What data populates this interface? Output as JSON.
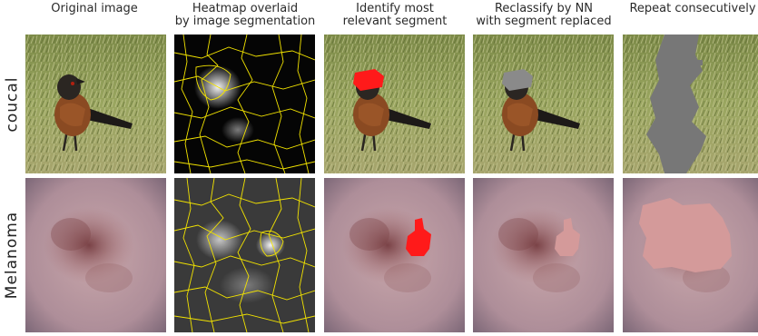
{
  "columns": [
    {
      "id": "original",
      "title_lines": [
        "Original image",
        ""
      ]
    },
    {
      "id": "heatmap",
      "title_lines": [
        "Heatmap overlaid",
        "by image segmentation"
      ]
    },
    {
      "id": "identify",
      "title_lines": [
        "Identify most",
        "relevant segment"
      ]
    },
    {
      "id": "reclassify",
      "title_lines": [
        "Reclassify by NN",
        "with segment replaced"
      ]
    },
    {
      "id": "repeat",
      "title_lines": [
        "Repeat consecutively",
        ""
      ]
    }
  ],
  "rows": [
    {
      "id": "coucal",
      "label": "coucal"
    },
    {
      "id": "melanoma",
      "label": "Melanoma"
    }
  ],
  "colors": {
    "grass": "#8f9a58",
    "bird_body": "#8a4a22",
    "bird_head": "#2b2622",
    "skin": "#b7949d",
    "lesion": "#8a5a58",
    "segment_lines": "#f2e300",
    "highlight_red": "#ff1a1a",
    "replaced_gray": "#777777",
    "replaced_pink": "#d49a9a"
  }
}
